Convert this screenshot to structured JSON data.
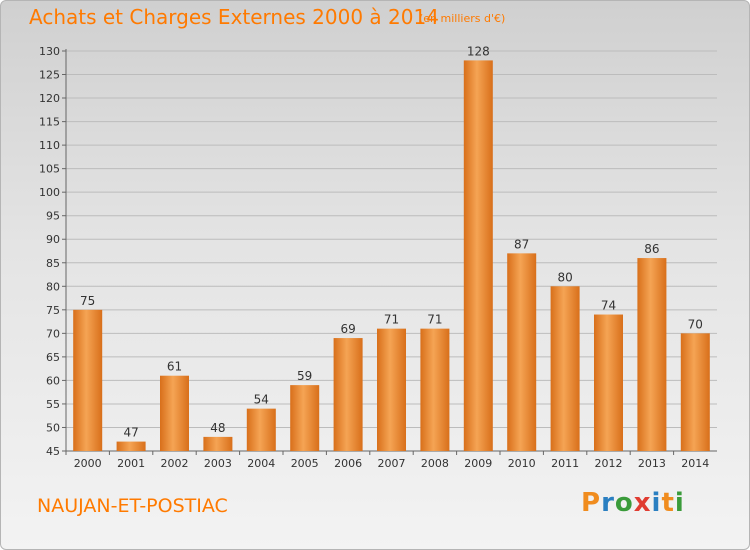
{
  "header": {
    "title": "Achats et Charges Externes 2000 à 2014",
    "unit": "(en milliers d'€)"
  },
  "footer": {
    "location": "NAUJAN-ET-POSTIAC",
    "brand": "Proxiti",
    "brand_colors": [
      "#f08c1e",
      "#2a7fc1",
      "#3a9b3a",
      "#e03c31",
      "#2a7fc1",
      "#f08c1e",
      "#3a9b3a"
    ]
  },
  "colors": {
    "bar_light": "#f5a454",
    "bar_dark": "#d86f1a",
    "text": "#333333",
    "accent": "#ff7a00"
  },
  "chart_data": {
    "type": "bar",
    "title": "Achats et Charges Externes 2000 à 2014",
    "subtitle": "(en milliers d'€)",
    "categories": [
      "2000",
      "2001",
      "2002",
      "2003",
      "2004",
      "2005",
      "2006",
      "2007",
      "2008",
      "2009",
      "2010",
      "2011",
      "2012",
      "2013",
      "2014"
    ],
    "values": [
      75,
      47,
      61,
      48,
      54,
      59,
      69,
      71,
      71,
      128,
      87,
      80,
      74,
      86,
      70
    ],
    "ylim": [
      45,
      130
    ],
    "yticks": [
      45,
      50,
      55,
      60,
      65,
      70,
      75,
      80,
      85,
      90,
      95,
      100,
      105,
      110,
      115,
      120,
      125,
      130
    ],
    "grid": true,
    "legend": "none"
  }
}
